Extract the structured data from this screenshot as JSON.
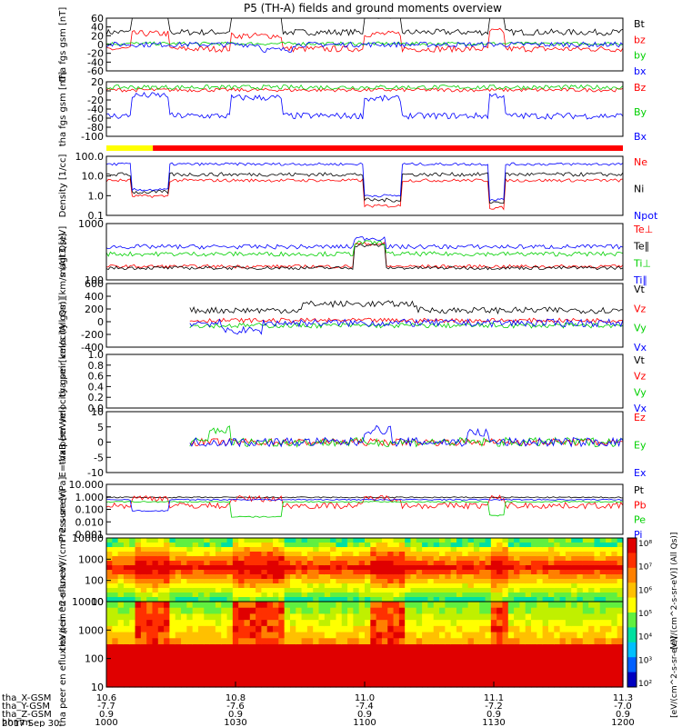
{
  "title": "P5 (TH-A) fields and ground moments overview",
  "x_axis": {
    "tick_labels": [
      "10.6",
      "10.8",
      "11.0",
      "11.1",
      "11.3"
    ],
    "rows": [
      {
        "label": "tha_X-GSM",
        "values": [
          "10.6",
          "10.8",
          "11.0",
          "11.1",
          "11.3"
        ]
      },
      {
        "label": "tha_Y-GSM",
        "values": [
          "-7.7",
          "-7.6",
          "-7.4",
          "-7.2",
          "-7.0"
        ]
      },
      {
        "label": "tha_Z-GSM",
        "values": [
          "0.9",
          "0.9",
          "0.9",
          "0.9",
          "0.9"
        ]
      },
      {
        "label": "hhmm",
        "values": [
          "1000",
          "1030",
          "1100",
          "1130",
          "1200"
        ]
      }
    ],
    "date": "2017 Sep 30"
  },
  "colors": {
    "black": "#000000",
    "red": "#ff0000",
    "green": "#00d000",
    "blue": "#0000ff",
    "mode_yellow": "#ffff00"
  },
  "chart_data": [
    {
      "type": "line",
      "ylabel": "tha fgs gsm [nT]",
      "ylim": [
        -60,
        60
      ],
      "ticks": [
        "60",
        "40",
        "20",
        "0",
        "-20",
        "-40",
        "-60"
      ],
      "legend": [
        "Bt",
        "bz",
        "by",
        "bx"
      ],
      "series": [
        {
          "name": "Bt",
          "color": "#000000",
          "level": 28,
          "noise": 7,
          "jumps": [
            [
              0.05,
              0.12,
              45
            ],
            [
              0.24,
              0.34,
              40
            ],
            [
              0.5,
              0.57,
              38
            ],
            [
              0.74,
              0.77,
              45
            ]
          ]
        },
        {
          "name": "bz",
          "color": "#ff0000",
          "level": -10,
          "noise": 7,
          "jumps": [
            [
              0.05,
              0.12,
              35
            ],
            [
              0.24,
              0.34,
              30
            ],
            [
              0.5,
              0.57,
              34
            ],
            [
              0.74,
              0.77,
              40
            ]
          ]
        },
        {
          "name": "by",
          "color": "#00d000",
          "level": 2,
          "noise": 4,
          "jumps": []
        },
        {
          "name": "bx",
          "color": "#0000ff",
          "level": 0,
          "noise": 6,
          "jumps": [
            [
              0.3,
              0.36,
              -12
            ]
          ]
        }
      ]
    },
    {
      "type": "line",
      "ylabel": "tha fgs gsm [nT]",
      "ylim": [
        -100,
        20
      ],
      "ticks": [
        "20",
        "0",
        "-20",
        "-40",
        "-60",
        "-80",
        "-100"
      ],
      "legend": [
        "Bz",
        "By",
        "Bx"
      ],
      "series": [
        {
          "name": "Bz",
          "color": "#ff0000",
          "level": 2,
          "noise": 4,
          "jumps": []
        },
        {
          "name": "By",
          "color": "#00d000",
          "level": 8,
          "noise": 5,
          "jumps": []
        },
        {
          "name": "Bx",
          "color": "#0000ff",
          "level": -55,
          "noise": 7,
          "jumps": [
            [
              0.05,
              0.12,
              45
            ],
            [
              0.24,
              0.34,
              40
            ],
            [
              0.5,
              0.57,
              38
            ],
            [
              0.74,
              0.77,
              45
            ]
          ]
        }
      ]
    },
    {
      "type": "bar",
      "label": "mode bar",
      "segments": [
        {
          "from": 0.0,
          "to": 0.09,
          "color": "#ffff00"
        },
        {
          "from": 0.09,
          "to": 1.0,
          "color": "#ff0000"
        }
      ]
    },
    {
      "type": "line",
      "ylabel": "Density [1/cc]",
      "scale": "log",
      "ylim": [
        0.1,
        100
      ],
      "ticks": [
        "100.0",
        "10.0",
        "1.0",
        "0.1"
      ],
      "legend": [
        "Ne",
        "Ni",
        "Npot"
      ],
      "series": [
        {
          "name": "Ne",
          "color": "#ff0000",
          "level": 6,
          "noise": 0.08,
          "jumps": [
            [
              0.05,
              0.12,
              -0.8
            ],
            [
              0.5,
              0.57,
              -1.3
            ],
            [
              0.74,
              0.77,
              -1.4
            ]
          ]
        },
        {
          "name": "Ni",
          "color": "#000000",
          "level": 12,
          "noise": 0.1,
          "jumps": [
            [
              0.05,
              0.12,
              -0.9
            ],
            [
              0.5,
              0.57,
              -1.3
            ],
            [
              0.74,
              0.77,
              -1.4
            ]
          ]
        },
        {
          "name": "Npot",
          "color": "#0000ff",
          "level": 40,
          "noise": 0.07,
          "jumps": [
            [
              0.05,
              0.12,
              -1.3
            ],
            [
              0.5,
              0.57,
              -1.6
            ],
            [
              0.74,
              0.77,
              -1.8
            ]
          ]
        }
      ]
    },
    {
      "type": "line",
      "ylabel": "magt3 [eV]",
      "scale": "log",
      "ylim": [
        30,
        3000
      ],
      "ticks": [
        "1000",
        "100"
      ],
      "legend": [
        "Te⊥",
        "Te∥",
        "Ti⊥",
        "Ti∥"
      ],
      "series": [
        {
          "name": "Te⊥",
          "color": "#ff0000",
          "level": 90,
          "noise": 0.06,
          "jumps": [
            [
              0.48,
              0.54,
              0.8
            ]
          ]
        },
        {
          "name": "Te∥",
          "color": "#000000",
          "level": 80,
          "noise": 0.06,
          "jumps": [
            [
              0.48,
              0.54,
              0.8
            ]
          ]
        },
        {
          "name": "Ti⊥",
          "color": "#00d000",
          "level": 250,
          "noise": 0.08,
          "jumps": [
            [
              0.48,
              0.54,
              0.4
            ]
          ]
        },
        {
          "name": "Ti∥",
          "color": "#0000ff",
          "level": 450,
          "noise": 0.08,
          "jumps": [
            [
              0.48,
              0.54,
              0.3
            ]
          ]
        }
      ]
    },
    {
      "type": "line",
      "ylabel": "tha peir velocity gsm [km/s (All Qs)]",
      "ylim": [
        -400,
        600
      ],
      "ticks": [
        "600",
        "400",
        "200",
        "0",
        "-200",
        "-400"
      ],
      "legend": [
        "Vt",
        "Vz",
        "Vy",
        "Vx"
      ],
      "series": [
        {
          "name": "Vt",
          "color": "#000000",
          "level": 180,
          "noise": 50,
          "jumps": [
            [
              0.38,
              0.6,
              100
            ]
          ],
          "start": 0.16
        },
        {
          "name": "Vz",
          "color": "#ff0000",
          "level": 20,
          "noise": 35,
          "jumps": [],
          "start": 0.16
        },
        {
          "name": "Vy",
          "color": "#00d000",
          "level": -60,
          "noise": 40,
          "jumps": [],
          "start": 0.16
        },
        {
          "name": "Vx",
          "color": "#0000ff",
          "level": -20,
          "noise": 60,
          "jumps": [
            [
              0.22,
              0.3,
              -120
            ]
          ],
          "start": 0.16
        }
      ]
    },
    {
      "type": "line",
      "ylabel": "tha peer velocity gsm [km/s (All Qs)]",
      "ylim": [
        0,
        1
      ],
      "ticks": [
        "1.0",
        "0.8",
        "0.6",
        "0.4",
        "0.2",
        "0.0"
      ],
      "legend": [
        "Vt",
        "Vz",
        "Vy",
        "Vx"
      ],
      "series": []
    },
    {
      "type": "line",
      "ylabel": "E=-VxB [mV/m]",
      "ylim": [
        -10,
        10
      ],
      "ticks": [
        "10",
        "5",
        "0",
        "-5",
        "-10"
      ],
      "legend": [
        "Ez",
        "Ey",
        "Ex"
      ],
      "series": [
        {
          "name": "Ez",
          "color": "#ff0000",
          "level": 0,
          "noise": 1.2,
          "jumps": [],
          "start": 0.16
        },
        {
          "name": "Ey",
          "color": "#00d000",
          "level": 0,
          "noise": 1.5,
          "jumps": [
            [
              0.2,
              0.24,
              4
            ]
          ],
          "start": 0.16
        },
        {
          "name": "Ex",
          "color": "#0000ff",
          "level": 0,
          "noise": 1.5,
          "jumps": [
            [
              0.5,
              0.55,
              4
            ],
            [
              0.7,
              0.74,
              3
            ]
          ],
          "start": 0.16
        }
      ]
    },
    {
      "type": "line",
      "ylabel": "Pressure [nPa]",
      "scale": "log",
      "ylim": [
        0.001,
        10
      ],
      "ticks": [
        "10.000",
        "1.000",
        "0.100",
        "0.010",
        "0.001"
      ],
      "legend": [
        "Pt",
        "Pb",
        "Pe",
        "Pi"
      ],
      "series": [
        {
          "name": "Pt",
          "color": "#000000",
          "level": 0.9,
          "noise": 0.05,
          "jumps": []
        },
        {
          "name": "Pb",
          "color": "#ff0000",
          "level": 0.2,
          "noise": 0.25,
          "jumps": [
            [
              0.05,
              0.12,
              0.6
            ],
            [
              0.24,
              0.34,
              0.55
            ],
            [
              0.5,
              0.57,
              0.6
            ],
            [
              0.74,
              0.77,
              0.6
            ]
          ]
        },
        {
          "name": "Pe",
          "color": "#00d000",
          "level": 0.4,
          "noise": 0.05,
          "jumps": [
            [
              0.24,
              0.34,
              -1.2
            ],
            [
              0.74,
              0.77,
              -1.1
            ]
          ]
        },
        {
          "name": "Pi",
          "color": "#0000ff",
          "level": 0.6,
          "noise": 0.05,
          "jumps": [
            [
              0.05,
              0.12,
              -0.9
            ]
          ]
        }
      ]
    },
    {
      "type": "heatmap",
      "ylabel": "tha peir en eflux eV/(cm^2-s-sr-eV)",
      "scale": "log",
      "ylim": [
        5,
        25000
      ],
      "ticks": [
        "10000",
        "1000",
        "100",
        "10"
      ]
    },
    {
      "type": "heatmap",
      "ylabel": "tha peer en eflux eV/(cm^2-s-sr-eV)",
      "scale": "log",
      "ylim": [
        5,
        25000
      ],
      "ticks": [
        "10000",
        "1000",
        "100",
        "10"
      ]
    }
  ],
  "colorbar": {
    "ticks": [
      "10⁸",
      "10⁷",
      "10⁶",
      "10⁵",
      "10⁴",
      "10³",
      "10²"
    ],
    "label": "[eV/(cm^2-s-sr-eV)] (All Qs)]",
    "label_lower": "[eV/(cm^2-s-sr-eV)]"
  }
}
